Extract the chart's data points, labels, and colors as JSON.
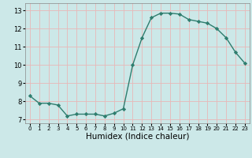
{
  "x": [
    0,
    1,
    2,
    3,
    4,
    5,
    6,
    7,
    8,
    9,
    10,
    11,
    12,
    13,
    14,
    15,
    16,
    17,
    18,
    19,
    20,
    21,
    22,
    23
  ],
  "y": [
    8.3,
    7.9,
    7.9,
    7.8,
    7.2,
    7.3,
    7.3,
    7.3,
    7.2,
    7.35,
    7.6,
    10.0,
    11.5,
    12.6,
    12.85,
    12.85,
    12.8,
    12.5,
    12.4,
    12.3,
    12.0,
    11.5,
    10.7,
    10.1
  ],
  "line_color": "#2e7d6e",
  "marker": "D",
  "marker_size": 2.2,
  "bg_color": "#cce8e8",
  "grid_color": "#e8b8b8",
  "xlabel": "Humidex (Indice chaleur)",
  "xlim": [
    -0.5,
    23.5
  ],
  "ylim": [
    6.8,
    13.4
  ],
  "yticks": [
    7,
    8,
    9,
    10,
    11,
    12,
    13
  ],
  "xticks": [
    0,
    1,
    2,
    3,
    4,
    5,
    6,
    7,
    8,
    9,
    10,
    11,
    12,
    13,
    14,
    15,
    16,
    17,
    18,
    19,
    20,
    21,
    22,
    23
  ],
  "xtick_fontsize": 5.0,
  "ytick_fontsize": 6.0,
  "label_fontsize": 7.5,
  "line_width": 1.0
}
